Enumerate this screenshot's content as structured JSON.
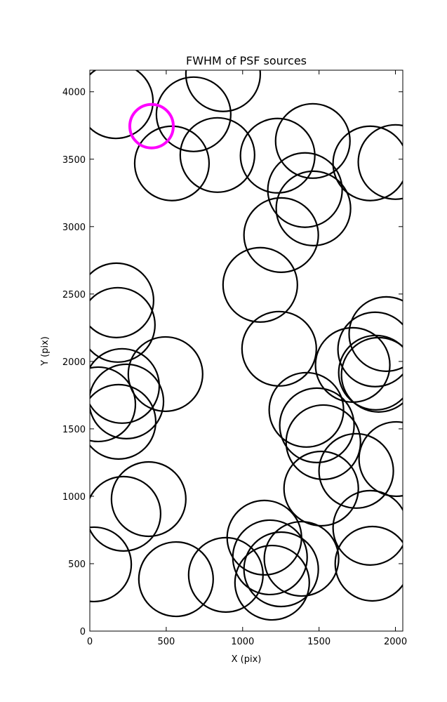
{
  "chart_data": {
    "type": "scatter",
    "title": "FWHM of PSF sources",
    "x_label": "X (pix)",
    "y_label": "Y (pix)",
    "xlim": [
      0,
      2048
    ],
    "ylim": [
      0,
      4160
    ],
    "xticks": [
      0,
      500,
      1000,
      1500,
      2000
    ],
    "yticks": [
      0,
      500,
      1000,
      1500,
      2000,
      2500,
      3000,
      3500,
      4000
    ],
    "series": [
      {
        "color": "#000000",
        "x": [
          170,
          679,
          872,
          537,
          835,
          1229,
          1459,
          1408,
          1463,
          1835,
          2000,
          1252,
          1115,
          1239,
          174,
          183,
          495,
          211,
          239,
          55,
          188,
          1940,
          1867,
          1720,
          1872,
          1890,
          1417,
          1486,
          1528,
          2005,
          1743,
          1514,
          385,
          220,
          28,
          1835,
          1849,
          1142,
          1179,
          1252,
          1385,
          1193,
          890,
          564
        ],
        "values": [
          3930,
          3833,
          4130,
          3469,
          3531,
          3526,
          3635,
          3271,
          3135,
          3469,
          3479,
          2937,
          2568,
          2094,
          2453,
          2271,
          1906,
          1818,
          1703,
          1682,
          1552,
          2203,
          2089,
          1974,
          1917,
          1901,
          1641,
          1526,
          1401,
          1276,
          1188,
          1057,
          979,
          870,
          495,
          766,
          500,
          693,
          547,
          458,
          536,
          359,
          417,
          385
        ]
      },
      {
        "color": "#ff00ff",
        "x": [
          404
        ],
        "values": [
          3745
        ]
      }
    ]
  }
}
